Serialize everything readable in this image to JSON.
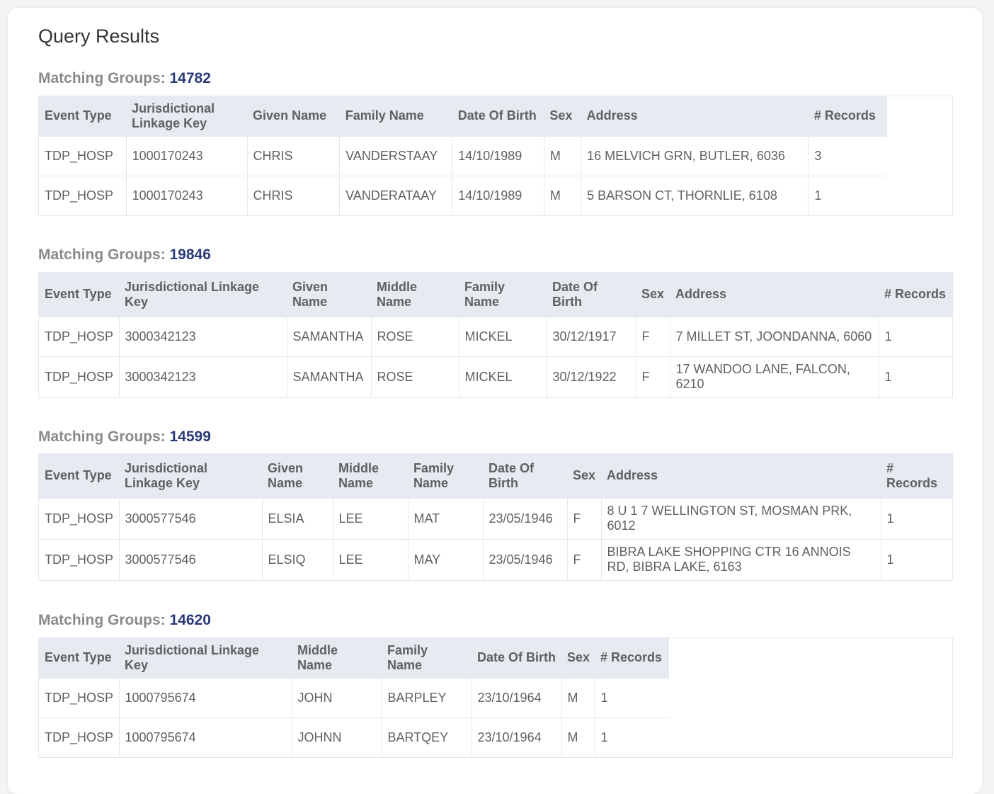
{
  "page": {
    "title": "Query Results"
  },
  "group_label": "Matching Groups: ",
  "groups": [
    {
      "id": "14782",
      "columns": [
        "Event Type",
        "Jurisdictional Linkage Key",
        "Given Name",
        "Family Name",
        "Date Of Birth",
        "Sex",
        "Address",
        "# Records"
      ],
      "rows": [
        [
          "TDP_HOSP",
          "1000170243",
          "CHRIS",
          "VANDERSTAAY",
          "14/10/1989",
          "M",
          "16 MELVICH GRN, BUTLER, 6036",
          "3"
        ],
        [
          "TDP_HOSP",
          "1000170243",
          "CHRIS",
          "VANDERATAAY",
          "14/10/1989",
          "M",
          "5 BARSON CT, THORNLIE, 6108",
          "1"
        ]
      ]
    },
    {
      "id": "19846",
      "columns": [
        "Event Type",
        "Jurisdictional Linkage Key",
        "Given Name",
        "Middle Name",
        "Family Name",
        "Date Of Birth",
        "Sex",
        "Address",
        "# Records"
      ],
      "rows": [
        [
          "TDP_HOSP",
          "3000342123",
          "SAMANTHA",
          "ROSE",
          "MICKEL",
          "30/12/1917",
          "F",
          "7 MILLET ST, JOONDANNA, 6060",
          "1"
        ],
        [
          "TDP_HOSP",
          "3000342123",
          "SAMANTHA",
          "ROSE",
          "MICKEL",
          "30/12/1922",
          "F",
          "17 WANDOO LANE, FALCON, 6210",
          "1"
        ]
      ]
    },
    {
      "id": "14599",
      "columns": [
        "Event Type",
        "Jurisdictional Linkage Key",
        "Given Name",
        "Middle Name",
        "Family Name",
        "Date Of Birth",
        "Sex",
        "Address",
        "# Records"
      ],
      "rows": [
        [
          "TDP_HOSP",
          "3000577546",
          "ELSIA",
          "LEE",
          "MAT",
          "23/05/1946",
          "F",
          "8 U 1 7 WELLINGTON ST, MOSMAN PRK, 6012",
          "1"
        ],
        [
          "TDP_HOSP",
          "3000577546",
          "ELSIQ",
          "LEE",
          "MAY",
          "23/05/1946",
          "F",
          "BIBRA LAKE SHOPPING CTR 16 ANNOIS RD, BIBRA LAKE, 6163",
          "1"
        ]
      ]
    },
    {
      "id": "14620",
      "columns": [
        "Event Type",
        "Jurisdictional Linkage Key",
        "Middle Name",
        "Family Name",
        "Date Of Birth",
        "Sex",
        "# Records"
      ],
      "rows": [
        [
          "TDP_HOSP",
          "1000795674",
          "JOHN",
          "BARPLEY",
          "23/10/1964",
          "M",
          "1"
        ],
        [
          "TDP_HOSP",
          "1000795674",
          "JOHNN",
          "BARTQEY",
          "23/10/1964",
          "M",
          "1"
        ]
      ]
    }
  ]
}
